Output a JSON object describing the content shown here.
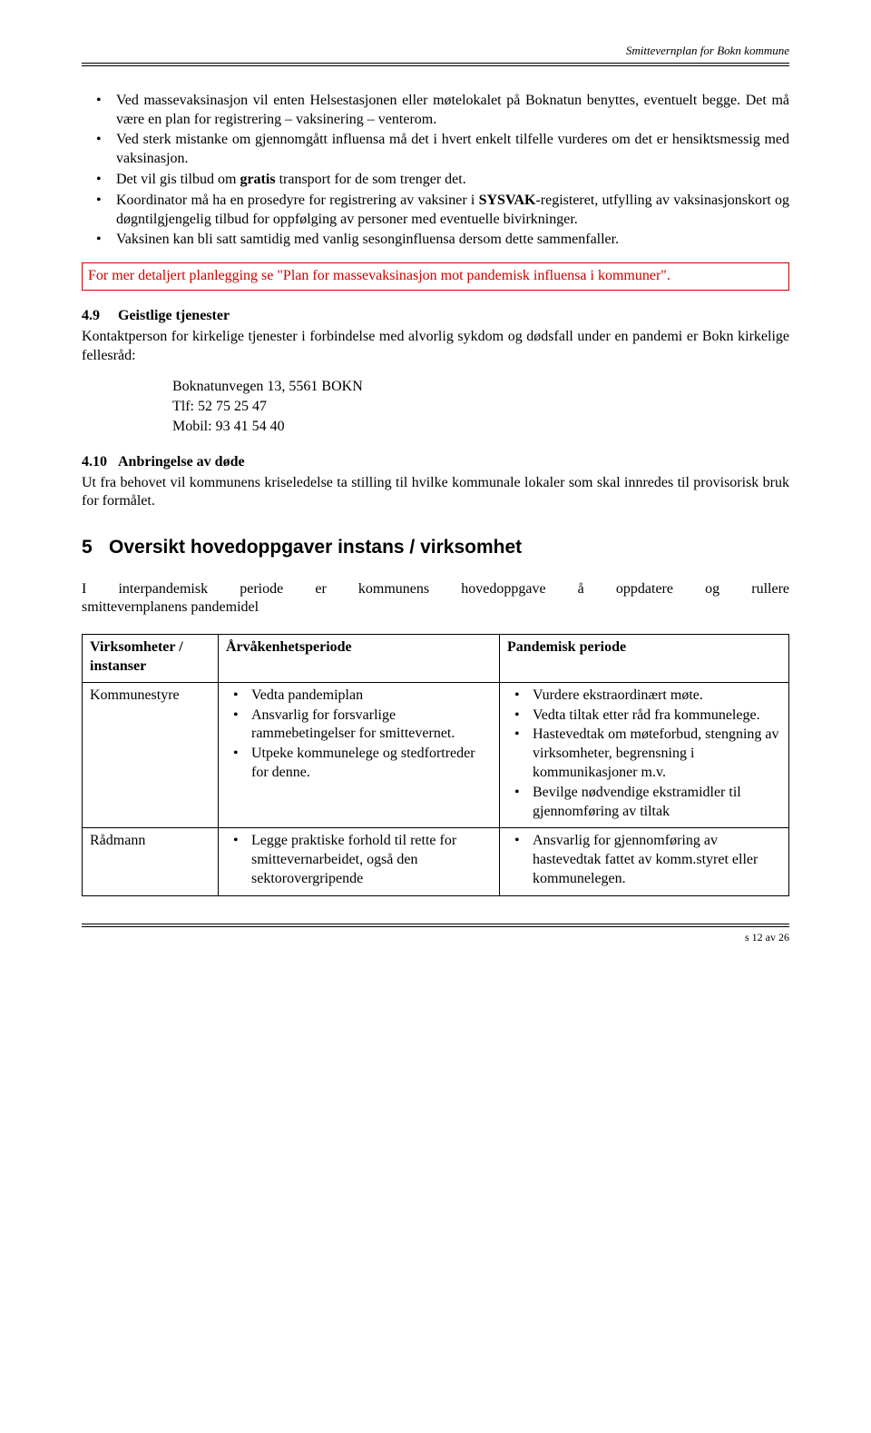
{
  "header": {
    "title": "Smittevernplan for Bokn kommune"
  },
  "bullets_main": [
    {
      "pre": "Ved massevaksinasjon vil enten Helsestasjonen eller møtelokalet på Boknatun benyttes, eventuelt begge. Det må være en plan for registrering – vaksinering – venterom."
    },
    {
      "pre": "Ved sterk mistanke om gjennomgått influensa må det i hvert enkelt tilfelle vurderes om det er hensiktsmessig med vaksinasjon."
    },
    {
      "pre": "Det vil gis tilbud om ",
      "bold": "gratis",
      "post": " transport for de som trenger det."
    },
    {
      "pre": "Koordinator må ha en prosedyre for registrering av vaksiner i ",
      "bold": "SYSVAK",
      "post": "-registeret, utfylling av vaksinasjonskort og døgntilgjengelig tilbud for oppfølging av personer med eventuelle bivirkninger."
    },
    {
      "pre": "Vaksinen kan bli satt samtidig med vanlig sesonginfluensa dersom dette sammenfaller."
    }
  ],
  "redbox_text": "For mer detaljert planlegging se \"Plan for massevaksinasjon mot pandemisk influensa i kommuner\".",
  "sec49": {
    "num": "4.9",
    "title": "Geistlige tjenester",
    "para": "Kontaktperson for kirkelige tjenester i forbindelse med alvorlig sykdom og dødsfall under en pandemi er Bokn kirkelige fellesråd:",
    "addr1": "Boknatunvegen 13, 5561 BOKN",
    "addr2": "Tlf: 52 75 25 47",
    "addr3": "Mobil: 93 41 54 40"
  },
  "sec410": {
    "num": "4.10",
    "title": "Anbringelse av døde",
    "para": "Ut fra behovet vil kommunens kriseledelse ta stilling til hvilke kommunale lokaler som skal innredes til provisorisk bruk for formålet."
  },
  "sec5": {
    "num": "5",
    "title": "Oversikt hovedoppgaver instans / virksomhet",
    "intro_line1": "I interpandemisk periode er kommunens hovedoppgave å oppdatere og rullere",
    "intro_line2": "smittevernplanens pandemidel"
  },
  "table": {
    "head": {
      "c1a": "Virksomheter /",
      "c1b": "instanser",
      "c2": "Årvåkenhetsperiode",
      "c3": "Pandemisk periode"
    },
    "rows": [
      {
        "c1": "Kommunestyre",
        "c2": [
          "Vedta pandemiplan",
          "Ansvarlig for forsvarlige rammebetingelser for smittevernet.",
          "Utpeke kommunelege og stedfortreder for denne."
        ],
        "c3": [
          "Vurdere ekstraordinært møte.",
          "Vedta tiltak etter råd fra kommunelege.",
          "Hastevedtak om møteforbud, stengning av virksomheter, begrensning i kommunikasjoner m.v.",
          "Bevilge nødvendige ekstramidler til gjennomføring av tiltak"
        ]
      },
      {
        "c1": "Rådmann",
        "c2": [
          "Legge praktiske forhold til rette for smittevernarbeidet, også den sektorovergripende"
        ],
        "c3": [
          "Ansvarlig for gjennomføring av hastevedtak fattet av komm.styret eller kommunelegen."
        ]
      }
    ]
  },
  "footer": {
    "page": "s 12 av 26"
  },
  "colors": {
    "text": "#000000",
    "red": "#cc0000",
    "background": "#ffffff",
    "border": "#000000"
  }
}
